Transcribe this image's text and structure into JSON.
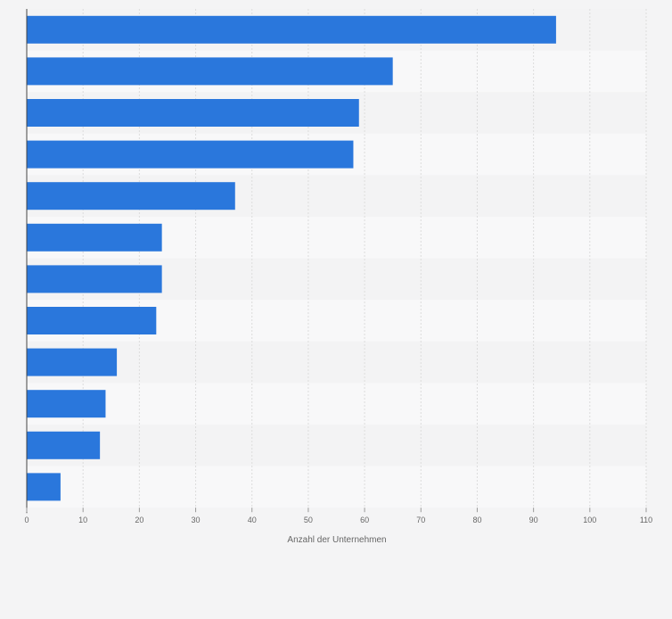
{
  "chart_data": {
    "type": "bar",
    "orientation": "horizontal",
    "categories": [
      "",
      "",
      "",
      "",
      "",
      "",
      "",
      "",
      "",
      "",
      "",
      ""
    ],
    "values": [
      94,
      65,
      59,
      58,
      37,
      24,
      24,
      23,
      16,
      14,
      13,
      6
    ],
    "xlabel": "Anzahl der Unternehmen",
    "ylabel": "",
    "xlim": [
      0,
      110
    ],
    "xticks": [
      0,
      10,
      20,
      30,
      40,
      50,
      60,
      70,
      80,
      90,
      100,
      110
    ],
    "grid": true,
    "bar_color": "#2a77dc",
    "band_colors": [
      "#f3f3f4",
      "#f8f8f9"
    ],
    "grid_color": "#dcdcdc",
    "axis_color": "#444444",
    "text_color": "#666666"
  }
}
